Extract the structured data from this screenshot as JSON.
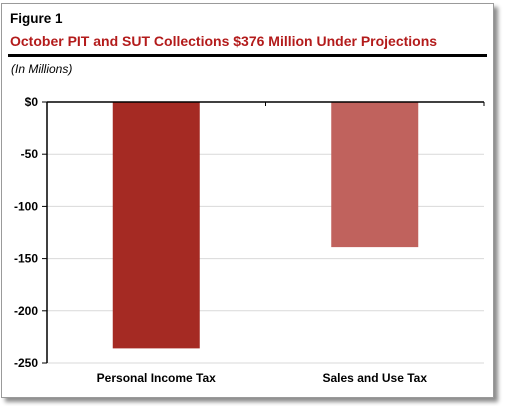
{
  "figure_label": "Figure 1",
  "title": "October PIT and SUT Collections $376 Million Under Projections",
  "units_note": "(In Millions)",
  "colors": {
    "title": "#b31b1b",
    "pit_bar": "#a52a23",
    "sut_bar": "#c0625d"
  },
  "chart_data": {
    "type": "bar",
    "categories": [
      "Personal Income Tax",
      "Sales and Use Tax"
    ],
    "values": [
      -236,
      -139
    ],
    "ylim": [
      -250,
      0
    ],
    "yticks": [
      0,
      -50,
      -100,
      -150,
      -200,
      -250
    ],
    "ytick_labels": [
      "$0",
      "-50",
      "-100",
      "-150",
      "-200",
      "-250"
    ],
    "grid": true,
    "xlabel": "",
    "ylabel": ""
  }
}
